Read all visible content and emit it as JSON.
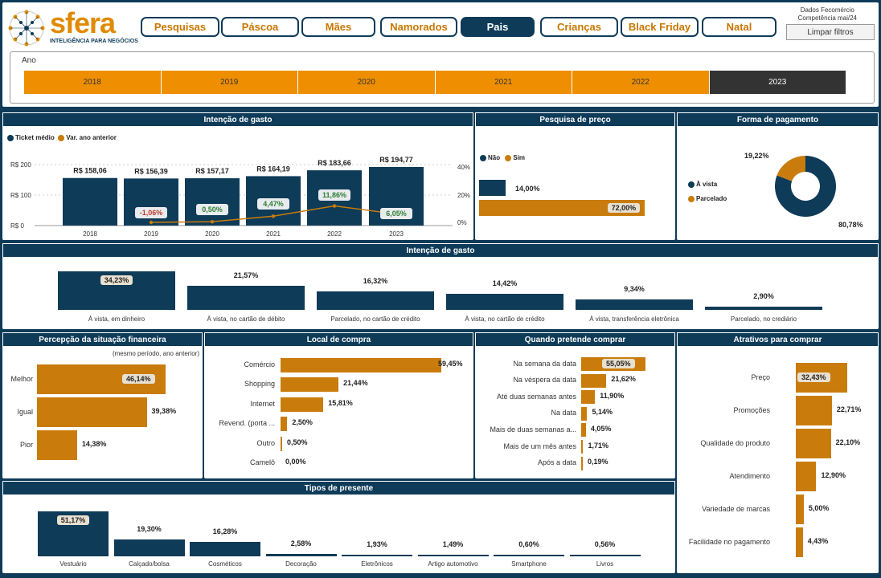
{
  "brand": {
    "name": "sfera",
    "tagline": "INTELIGÊNCIA PARA NEGÓCIOS"
  },
  "nav": [
    "Pesquisas",
    "Páscoa",
    "Mães",
    "Namorados",
    "Pais",
    "Crianças",
    "Black Friday",
    "Natal"
  ],
  "nav_active": "Pais",
  "data_info": {
    "line1": "Dados Fecomércio",
    "line2": "Competência mai/24"
  },
  "clear_filters": "Limpar filtros",
  "year_filter": {
    "label": "Ano",
    "years": [
      "2018",
      "2019",
      "2020",
      "2021",
      "2022",
      "2023"
    ],
    "selected": "2023"
  },
  "colors": {
    "navy": "#0e3b58",
    "orange": "#ef8f00",
    "bar_orange": "#c97c0c"
  },
  "intencao": {
    "title": "Intenção de gasto",
    "legend": [
      "Ticket médio",
      "Var. ano anterior"
    ],
    "y_ticks": [
      "R$ 200",
      "R$ 100",
      "R$ 0"
    ],
    "y2_ticks": [
      "40%",
      "20%",
      "0%"
    ],
    "chart_data": {
      "type": "bar",
      "categories": [
        "2018",
        "2019",
        "2020",
        "2021",
        "2022",
        "2023"
      ],
      "series": [
        {
          "name": "Ticket médio",
          "values": [
            158.06,
            156.39,
            157.17,
            164.19,
            183.66,
            194.77
          ]
        },
        {
          "name": "Var. ano anterior",
          "values": [
            null,
            -1.06,
            0.5,
            4.47,
            11.86,
            6.05
          ]
        }
      ],
      "value_labels": [
        "R$ 158,06",
        "R$ 156,39",
        "R$ 157,17",
        "R$ 164,19",
        "R$ 183,66",
        "R$ 194,77"
      ],
      "var_labels": [
        "",
        "-1,06%",
        "0,50%",
        "4,47%",
        "11,86%",
        "6,05%"
      ],
      "ylim": [
        0,
        200
      ],
      "y2lim": [
        0,
        40
      ]
    }
  },
  "pesquisa": {
    "title": "Pesquisa de preço",
    "legend": [
      "Não",
      "Sim"
    ],
    "values": [
      14.0,
      72.0
    ],
    "labels": [
      "14,00%",
      "72,00%"
    ]
  },
  "pagamento": {
    "title": "Forma de pagamento",
    "legend": [
      "À vista",
      "Parcelado"
    ],
    "values": [
      80.78,
      19.22
    ],
    "labels": [
      "80,78%",
      "19,22%"
    ]
  },
  "intencao2": {
    "title": "Intenção de gasto",
    "categories": [
      "À vista, em dinheiro",
      "À vista, no cartão de débito",
      "Parcelado, no cartão de crédito",
      "À vista, no cartão de crédito",
      "À vista, transferência eletrônica",
      "Parcelado, no crediário"
    ],
    "values": [
      34.23,
      21.57,
      16.32,
      14.42,
      9.34,
      2.9
    ],
    "labels": [
      "34,23%",
      "21,57%",
      "16,32%",
      "14,42%",
      "9,34%",
      "2,90%"
    ]
  },
  "percepcao": {
    "title": "Percepção da situação financeira",
    "subtitle": "(mesmo período, ano anterior)",
    "categories": [
      "Melhor",
      "Igual",
      "Pior"
    ],
    "values": [
      46.14,
      39.38,
      14.38
    ],
    "labels": [
      "46,14%",
      "39,38%",
      "14,38%"
    ]
  },
  "local": {
    "title": "Local de compra",
    "categories": [
      "Comércio",
      "Shopping",
      "Internet",
      "Revend. (porta ...",
      "Outro",
      "Camelô"
    ],
    "values": [
      59.45,
      21.44,
      15.81,
      2.5,
      0.5,
      0.0
    ],
    "labels": [
      "59,45%",
      "21,44%",
      "15,81%",
      "2,50%",
      "0,50%",
      "0,00%"
    ]
  },
  "quando": {
    "title": "Quando pretende comprar",
    "categories": [
      "Na semana da data",
      "Na véspera da data",
      "Até duas semanas antes",
      "Na data",
      "Mais de duas semanas a...",
      "Mais de um mês antes",
      "Após a data"
    ],
    "values": [
      55.05,
      21.62,
      11.9,
      5.14,
      4.05,
      1.71,
      0.19
    ],
    "labels": [
      "55,05%",
      "21,62%",
      "11,90%",
      "5,14%",
      "4,05%",
      "1,71%",
      "0,19%"
    ]
  },
  "atrativos": {
    "title": "Atrativos para comprar",
    "categories": [
      "Preço",
      "Promoções",
      "Qualidade do produto",
      "Atendimento",
      "Variedade de marcas",
      "Facilidade no pagamento"
    ],
    "values": [
      32.43,
      22.71,
      22.1,
      12.9,
      5.0,
      4.43
    ],
    "labels": [
      "32,43%",
      "22,71%",
      "22,10%",
      "12,90%",
      "5,00%",
      "4,43%"
    ]
  },
  "presente": {
    "title": "Tipos de presente",
    "categories": [
      "Vestuário",
      "Calçado/bolsa",
      "Cosméticos",
      "Decoração",
      "Eletrônicos",
      "Artigo automotivo",
      "Smartphone",
      "Livros"
    ],
    "values": [
      51.17,
      19.3,
      16.28,
      2.58,
      1.93,
      1.49,
      0.6,
      0.56
    ],
    "labels": [
      "51,17%",
      "19,30%",
      "16,28%",
      "2,58%",
      "1,93%",
      "1,49%",
      "0,60%",
      "0,56%"
    ]
  }
}
